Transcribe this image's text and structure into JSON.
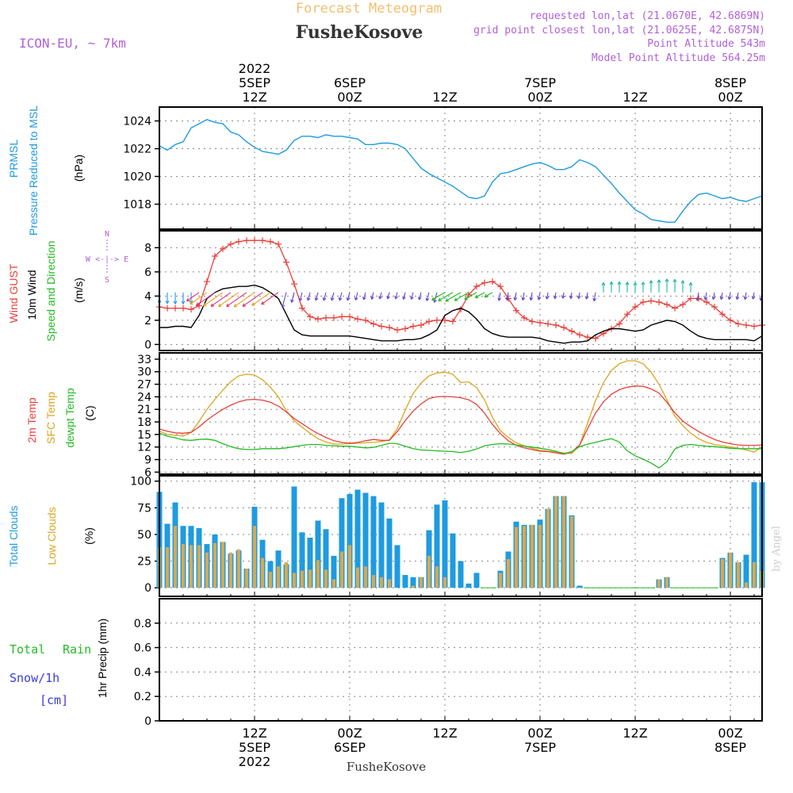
{
  "header": {
    "title": "Forecast Meteogram",
    "location": "FusheKosove",
    "model": "ICON-EU, ~ 7km",
    "requested": "requested lon,lat (21.0670E, 42.6869N)",
    "closest": "grid point closest lon,lat (21.0625E, 42.6875N)",
    "point_altitude": "Point Altitude 543m",
    "model_altitude": "Model Point Altitude 564.25m",
    "footer_location": "FusheKosove",
    "watermark": "by Angel"
  },
  "colors": {
    "pressure": "#1e9be0",
    "gust": "#e8403a",
    "wind": "#000000",
    "temp": "#e8403a",
    "sfc": "#dda520",
    "dewpt": "#22bb22",
    "total_clouds": "#1e9be0",
    "low_clouds": "#d9a84e",
    "purple": "#b060d8",
    "snow": "#3a3ae0",
    "rain": "#22bb22"
  },
  "time_axis": {
    "top": [
      {
        "t": 12,
        "lines": [
          "2022",
          "5SEP",
          "12Z"
        ]
      },
      {
        "t": 24,
        "lines": [
          "6SEP",
          "00Z"
        ]
      },
      {
        "t": 36,
        "lines": [
          "12Z"
        ]
      },
      {
        "t": 48,
        "lines": [
          "7SEP",
          "00Z"
        ]
      },
      {
        "t": 60,
        "lines": [
          "12Z"
        ]
      },
      {
        "t": 72,
        "lines": [
          "8SEP",
          "00Z"
        ]
      }
    ],
    "bottom": [
      {
        "t": 12,
        "lines": [
          "12Z",
          "5SEP",
          "2022"
        ]
      },
      {
        "t": 24,
        "lines": [
          "00Z",
          "6SEP"
        ]
      },
      {
        "t": 36,
        "lines": [
          "12Z"
        ]
      },
      {
        "t": 48,
        "lines": [
          "00Z",
          "7SEP"
        ]
      },
      {
        "t": 60,
        "lines": [
          "12Z"
        ]
      },
      {
        "t": 72,
        "lines": [
          "00Z",
          "8SEP"
        ]
      }
    ]
  },
  "panel_labels": {
    "pressure": [
      "PRMSL",
      "Pressure Reduced to MSL",
      "(hPa)"
    ],
    "wind": [
      "Wind GUST",
      "10m Wind",
      "Speed and Direction",
      "(m/s)"
    ],
    "compass": [
      "N",
      "W <-|-> E",
      "S"
    ],
    "temp": [
      "2m Temp",
      "SFC Temp",
      "dewpt Temp",
      "(C)"
    ],
    "clouds": [
      "Total Clouds",
      "Low Clouds",
      "(%)"
    ],
    "precip": [
      "Total",
      "Rain",
      "Snow/1h",
      "[cm]",
      "1hr Precip (mm)"
    ]
  },
  "chart_data": [
    {
      "type": "line",
      "title": "PRMSL Pressure Reduced to MSL",
      "ylabel": "(hPa)",
      "x_hours": [
        0,
        1,
        2,
        3,
        4,
        5,
        6,
        7,
        8,
        9,
        10,
        11,
        12,
        13,
        14,
        15,
        16,
        17,
        18,
        19,
        20,
        21,
        22,
        23,
        24,
        25,
        26,
        27,
        28,
        29,
        30,
        31,
        32,
        33,
        34,
        35,
        36,
        37,
        38,
        39,
        40,
        41,
        42,
        43,
        44,
        45,
        46,
        47,
        48,
        49,
        50,
        51,
        52,
        53,
        54,
        55,
        56,
        57,
        58,
        59,
        60,
        61,
        62,
        63,
        64,
        65,
        66,
        67,
        68,
        69,
        70,
        71,
        72,
        73,
        74,
        75,
        76
      ],
      "yticks": [
        1018,
        1020,
        1022,
        1024
      ],
      "ylim": [
        1016.2,
        1025
      ],
      "series": [
        {
          "name": "PRMSL",
          "values": [
            1022.2,
            1021.9,
            1022.3,
            1022.5,
            1023.5,
            1023.8,
            1024.1,
            1023.9,
            1023.8,
            1023.2,
            1023.0,
            1022.5,
            1022.1,
            1021.8,
            1021.7,
            1021.6,
            1021.9,
            1022.6,
            1022.9,
            1022.9,
            1022.8,
            1023.0,
            1022.9,
            1022.9,
            1022.8,
            1022.7,
            1022.3,
            1022.3,
            1022.4,
            1022.4,
            1022.3,
            1022.0,
            1021.3,
            1020.6,
            1020.2,
            1019.9,
            1019.6,
            1019.3,
            1018.9,
            1018.5,
            1018.4,
            1018.6,
            1019.6,
            1020.2,
            1020.3,
            1020.5,
            1020.7,
            1020.9,
            1021.0,
            1020.8,
            1020.5,
            1020.5,
            1020.7,
            1021.2,
            1021.0,
            1020.7,
            1020.1,
            1019.5,
            1018.8,
            1018.2,
            1017.6,
            1017.3,
            1016.9,
            1016.8,
            1016.7,
            1016.7,
            1017.5,
            1018.2,
            1018.7,
            1018.8,
            1018.6,
            1018.4,
            1018.5,
            1018.3,
            1018.2,
            1018.4,
            1018.6
          ]
        }
      ]
    },
    {
      "type": "line",
      "title": "Wind GUST / 10m Wind Speed and Direction",
      "ylabel": "(m/s)",
      "yticks": [
        0,
        2,
        4,
        6,
        8
      ],
      "ylim": [
        -0.5,
        9.4
      ],
      "series": [
        {
          "name": "Wind GUST",
          "values": [
            3.1,
            3.0,
            3.0,
            3.0,
            2.9,
            3.2,
            5.2,
            7.3,
            7.9,
            8.3,
            8.5,
            8.6,
            8.6,
            8.6,
            8.5,
            8.3,
            6.8,
            5.0,
            3.0,
            2.3,
            2.1,
            2.2,
            2.2,
            2.3,
            2.3,
            2.1,
            2.0,
            1.7,
            1.5,
            1.4,
            1.2,
            1.3,
            1.5,
            1.6,
            1.9,
            2.0,
            2.0,
            1.9,
            2.9,
            4.1,
            4.8,
            5.1,
            5.2,
            4.8,
            3.8,
            2.8,
            2.2,
            1.9,
            1.8,
            1.7,
            1.6,
            1.4,
            1.1,
            0.8,
            0.6,
            0.5,
            0.9,
            1.3,
            1.7,
            2.5,
            3.1,
            3.5,
            3.6,
            3.5,
            3.3,
            3.0,
            3.3,
            3.8,
            3.8,
            3.5,
            3.1,
            2.5,
            2.0,
            1.7,
            1.6,
            1.5,
            1.6
          ]
        },
        {
          "name": "10m Wind",
          "values": [
            1.4,
            1.4,
            1.5,
            1.5,
            1.4,
            2.4,
            3.8,
            4.3,
            4.6,
            4.7,
            4.8,
            4.8,
            4.9,
            4.7,
            4.3,
            3.8,
            2.5,
            1.2,
            0.8,
            0.7,
            0.7,
            0.7,
            0.7,
            0.7,
            0.7,
            0.6,
            0.5,
            0.4,
            0.3,
            0.3,
            0.3,
            0.4,
            0.4,
            0.5,
            0.8,
            1.2,
            2.4,
            2.8,
            3.0,
            2.7,
            2.1,
            1.3,
            0.9,
            0.7,
            0.6,
            0.6,
            0.6,
            0.6,
            0.5,
            0.3,
            0.2,
            0.1,
            0.2,
            0.2,
            0.3,
            0.8,
            1.1,
            1.3,
            1.3,
            1.2,
            1.1,
            1.2,
            1.6,
            1.8,
            2.0,
            1.9,
            1.6,
            1.1,
            0.7,
            0.5,
            0.4,
            0.4,
            0.4,
            0.4,
            0.4,
            0.3,
            0.7
          ]
        }
      ]
    },
    {
      "type": "line",
      "title": "2m Temp / SFC Temp / dewpt Temp",
      "ylabel": "(C)",
      "yticks": [
        6,
        9,
        12,
        15,
        18,
        21,
        24,
        27,
        30,
        33
      ],
      "ylim": [
        5.5,
        34.5
      ],
      "series": [
        {
          "name": "2m Temp",
          "values": [
            16.3,
            15.8,
            15.4,
            15.3,
            15.5,
            16.8,
            18.4,
            19.8,
            21.0,
            22.0,
            22.8,
            23.3,
            23.4,
            23.2,
            22.7,
            21.8,
            20.4,
            18.8,
            17.6,
            16.3,
            15.2,
            14.3,
            13.5,
            13.1,
            12.9,
            13.1,
            13.5,
            13.8,
            13.6,
            13.6,
            15.7,
            18.3,
            20.6,
            22.3,
            23.6,
            24.0,
            24.1,
            24.0,
            23.8,
            23.3,
            22.2,
            20.1,
            17.4,
            15.2,
            13.5,
            12.4,
            11.8,
            11.4,
            11.0,
            10.9,
            10.6,
            10.3,
            10.8,
            12.5,
            16.4,
            20.1,
            22.8,
            24.6,
            25.7,
            26.3,
            26.6,
            26.5,
            25.9,
            24.9,
            22.7,
            20.2,
            18.2,
            16.9,
            15.7,
            14.7,
            13.8,
            13.2,
            12.8,
            12.5,
            12.4,
            12.4,
            12.5
          ]
        },
        {
          "name": "SFC Temp",
          "values": [
            15.8,
            15.0,
            14.8,
            14.6,
            15.5,
            18.1,
            21.0,
            23.4,
            25.6,
            27.6,
            29.0,
            29.4,
            29.2,
            28.1,
            26.3,
            24.0,
            20.7,
            18.3,
            16.7,
            15.3,
            14.0,
            13.2,
            12.7,
            12.7,
            12.8,
            12.9,
            13.0,
            13.1,
            13.3,
            13.7,
            16.4,
            20.8,
            24.8,
            27.3,
            29.0,
            29.7,
            29.9,
            29.4,
            27.4,
            27.6,
            26.2,
            23.3,
            19.1,
            15.9,
            14.3,
            13.0,
            12.3,
            11.7,
            11.2,
            11.0,
            10.8,
            10.6,
            10.4,
            12.5,
            17.7,
            23.1,
            27.4,
            30.3,
            31.9,
            32.6,
            32.6,
            31.9,
            29.9,
            27.0,
            23.3,
            19.4,
            17.1,
            15.3,
            14.0,
            13.1,
            12.6,
            12.3,
            12.0,
            11.7,
            11.3,
            10.8,
            12.1
          ]
        },
        {
          "name": "dewpt Temp",
          "values": [
            15.3,
            14.6,
            14.2,
            13.7,
            13.6,
            13.8,
            13.9,
            13.6,
            12.8,
            12.1,
            11.6,
            11.4,
            11.4,
            11.6,
            11.6,
            11.6,
            11.8,
            12.1,
            12.4,
            12.6,
            12.6,
            12.4,
            12.3,
            12.2,
            12.2,
            12.0,
            11.8,
            11.9,
            12.4,
            12.9,
            12.8,
            12.2,
            11.6,
            11.3,
            11.2,
            11.1,
            11.0,
            10.9,
            10.7,
            11.0,
            11.5,
            12.3,
            12.6,
            12.8,
            12.7,
            12.5,
            12.2,
            12.0,
            11.7,
            11.4,
            11.0,
            10.4,
            10.9,
            12.1,
            12.7,
            13.1,
            13.6,
            14.0,
            13.2,
            11.1,
            9.9,
            9.1,
            8.2,
            7.0,
            8.5,
            11.5,
            12.4,
            12.6,
            12.4,
            12.2,
            12.1,
            11.9,
            11.7,
            11.6,
            11.6,
            11.6,
            11.6
          ]
        }
      ]
    },
    {
      "type": "bar",
      "title": "Total Clouds / Low Clouds",
      "ylabel": "(%)",
      "yticks": [
        0,
        25,
        50,
        75,
        100
      ],
      "ylim": [
        -8,
        105
      ],
      "series": [
        {
          "name": "Total Clouds",
          "values": [
            90,
            60,
            80,
            58,
            58,
            56,
            41,
            50,
            43,
            32,
            35,
            18,
            76,
            45,
            25,
            35,
            22,
            95,
            52,
            47,
            63,
            55,
            30,
            84,
            88,
            92,
            89,
            86,
            80,
            65,
            40,
            12,
            10,
            10,
            54,
            78,
            82,
            51,
            25,
            4,
            14,
            0,
            0,
            16,
            34,
            62,
            59,
            59,
            64,
            74,
            86,
            86,
            68,
            2,
            0,
            0,
            0,
            0,
            0,
            0,
            0,
            0,
            0,
            8,
            10,
            0,
            0,
            0,
            0,
            0,
            0,
            28,
            33,
            24,
            31,
            99,
            99
          ]
        },
        {
          "name": "Low Clouds",
          "values": [
            38,
            38,
            58,
            41,
            40,
            40,
            33,
            42,
            43,
            33,
            36,
            18,
            58,
            28,
            15,
            20,
            24,
            14,
            16,
            17,
            26,
            17,
            8,
            34,
            40,
            19,
            20,
            12,
            10,
            8,
            0,
            0,
            2,
            10,
            30,
            20,
            10,
            0,
            0,
            0,
            0,
            0,
            0,
            14,
            27,
            57,
            58,
            59,
            59,
            74,
            86,
            86,
            67,
            0,
            0,
            0,
            0,
            0,
            0,
            0,
            0,
            0,
            0,
            8,
            10,
            0,
            0,
            0,
            0,
            0,
            0,
            27,
            33,
            24,
            5,
            24,
            16
          ]
        }
      ]
    },
    {
      "type": "bar",
      "title": "Total Rain / Snow 1hr Precip",
      "ylabel": "1hr Precip (mm)",
      "yticks": [
        0,
        0.2,
        0.4,
        0.6,
        0.8
      ],
      "ylim": [
        0,
        1.0
      ],
      "series": [
        {
          "name": "Total Rain",
          "values": [
            0
          ]
        },
        {
          "name": "Snow/1h",
          "values": [
            0
          ]
        }
      ]
    }
  ]
}
